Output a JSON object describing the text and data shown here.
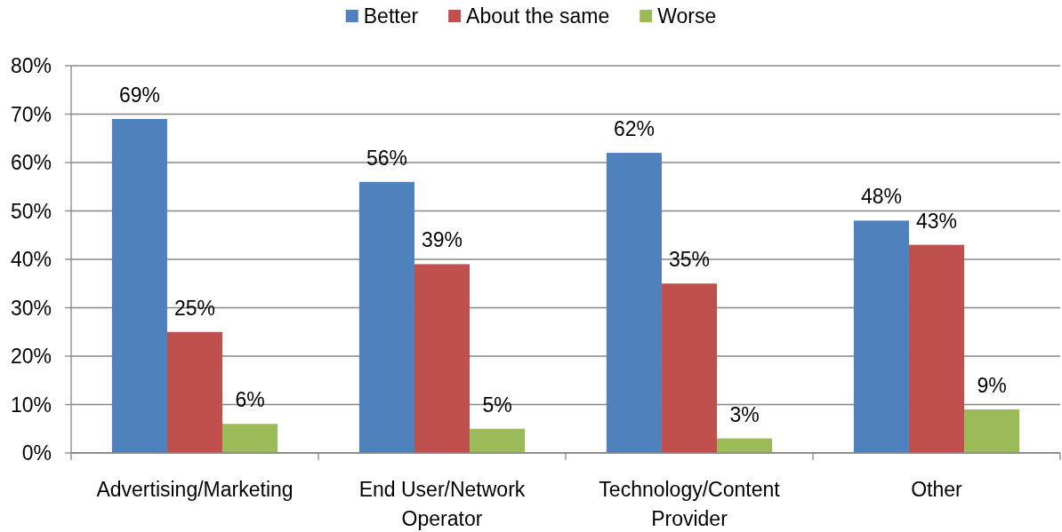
{
  "chart_data": {
    "type": "bar",
    "categories": [
      "Advertising/Marketing",
      "End User/Network Operator",
      "Technology/Content Provider",
      "Other"
    ],
    "series": [
      {
        "name": "Better",
        "color": "#4f81bd",
        "values": [
          69,
          56,
          62,
          48
        ],
        "value_labels": [
          "69%",
          "56%",
          "62%",
          "48%"
        ]
      },
      {
        "name": "About the same",
        "color": "#c0504d",
        "values": [
          25,
          39,
          35,
          43
        ],
        "value_labels": [
          "25%",
          "39%",
          "35%",
          "43%"
        ]
      },
      {
        "name": "Worse",
        "color": "#9bbb59",
        "values": [
          6,
          5,
          3,
          9
        ],
        "value_labels": [
          "6%",
          "5%",
          "3%",
          "9%"
        ]
      }
    ],
    "ylim": [
      0,
      80
    ],
    "yticks": [
      {
        "value": 0,
        "label": "0%"
      },
      {
        "value": 10,
        "label": "10%"
      },
      {
        "value": 20,
        "label": "20%"
      },
      {
        "value": 30,
        "label": "30%"
      },
      {
        "value": 40,
        "label": "40%"
      },
      {
        "value": 50,
        "label": "50%"
      },
      {
        "value": 60,
        "label": "60%"
      },
      {
        "value": 70,
        "label": "70%"
      },
      {
        "value": 80,
        "label": "80%"
      }
    ],
    "grid": "y",
    "legend": "top"
  }
}
